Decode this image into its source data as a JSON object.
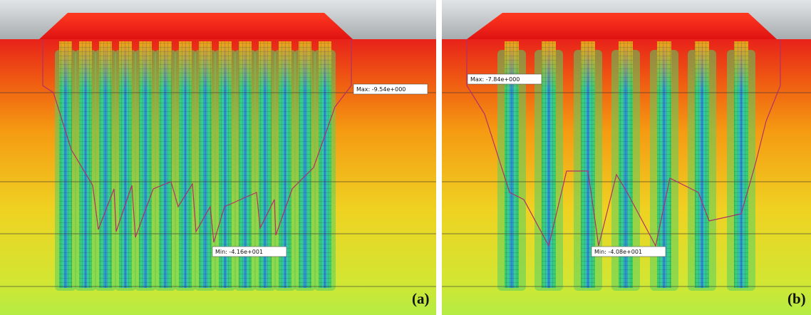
{
  "panels": [
    {
      "label": "(a)",
      "max_label": "Max: -9.54e+000",
      "min_label": "Min: -4.16e+001"
    },
    {
      "label": "(b)",
      "max_label": "Max: -7.84e+000",
      "min_label": "Min: -4.08e+001"
    }
  ]
}
